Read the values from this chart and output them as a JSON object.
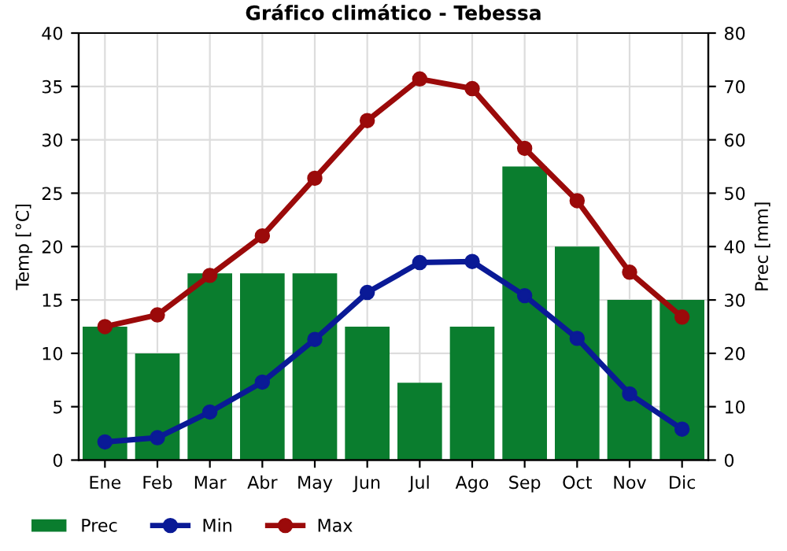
{
  "chart_data": {
    "type": "line",
    "title": "Gráfico climático - Tebessa",
    "ylabel": "Temp [°C]",
    "y2label": "Prec [mm]",
    "categories": [
      "Ene",
      "Feb",
      "Mar",
      "Abr",
      "May",
      "Jun",
      "Jul",
      "Ago",
      "Sep",
      "Oct",
      "Nov",
      "Dic"
    ],
    "series": [
      {
        "name": "Prec",
        "type": "bar",
        "axis": "y2",
        "color": "#0a7d2e",
        "values": [
          25,
          20,
          35,
          35,
          35,
          25,
          14.5,
          25,
          55,
          40,
          30,
          30
        ]
      },
      {
        "name": "Min",
        "color": "#0a1a96",
        "values": [
          1.7,
          2.1,
          4.5,
          7.3,
          11.3,
          15.7,
          18.5,
          18.6,
          15.4,
          11.4,
          6.2,
          2.9
        ]
      },
      {
        "name": "Max",
        "color": "#9b0a0a",
        "values": [
          12.5,
          13.6,
          17.3,
          21.0,
          26.4,
          31.8,
          35.7,
          34.8,
          29.2,
          24.3,
          17.6,
          13.4
        ]
      }
    ],
    "ylim": [
      0,
      40
    ],
    "yticks": [
      0,
      5,
      10,
      15,
      20,
      25,
      30,
      35,
      40
    ],
    "y2lim": [
      0,
      80
    ],
    "y2ticks": [
      0,
      10,
      20,
      30,
      40,
      50,
      60,
      70,
      80
    ],
    "grid": true,
    "legend": "bottom",
    "marker": "circle"
  }
}
